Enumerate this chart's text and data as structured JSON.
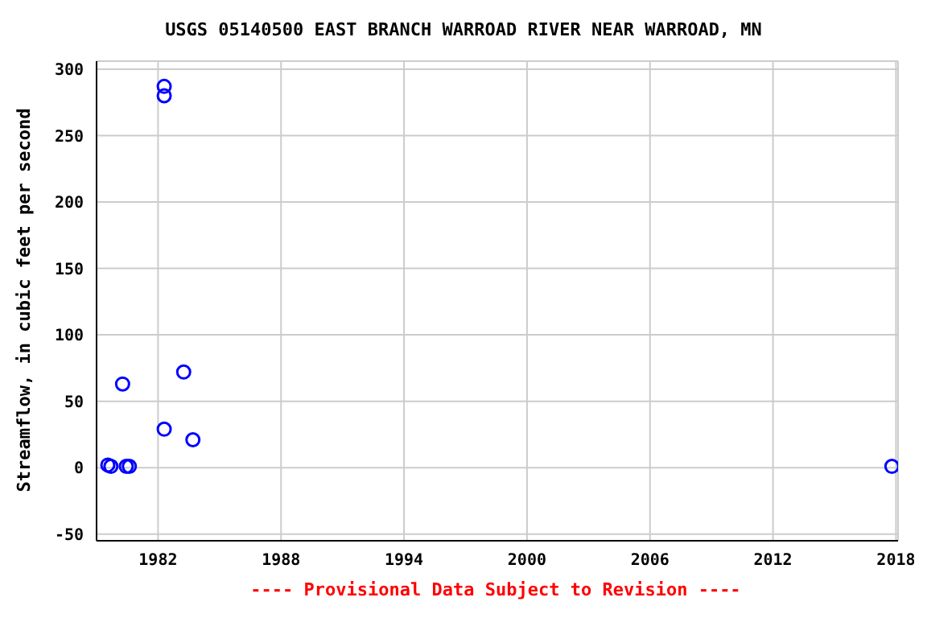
{
  "chart_data": {
    "type": "scatter",
    "title": "USGS 05140500 EAST BRANCH WARROAD RIVER NEAR WARROAD, MN",
    "ylabel": "Streamflow, in cubic feet per second",
    "annotations": [
      "---- Provisional Data Subject to Revision ----"
    ],
    "x": [
      1979.55,
      1979.7,
      1980.27,
      1980.45,
      1980.6,
      1982.3,
      1982.3,
      1982.3,
      1983.25,
      1983.7,
      2017.8
    ],
    "series": [
      {
        "color": "#0000ff",
        "values": [
          2,
          1,
          63,
          1,
          1,
          287,
          280,
          29,
          72,
          21,
          1
        ]
      }
    ],
    "xlim": [
      1979,
      2018.1
    ],
    "xticks": [
      1982,
      1988,
      1994,
      2000,
      2006,
      2012,
      2018
    ],
    "ylim": [
      -55,
      306
    ],
    "yticks": [
      -50,
      0,
      50,
      100,
      150,
      200,
      250,
      300
    ],
    "grid": true,
    "marker": "circle"
  }
}
